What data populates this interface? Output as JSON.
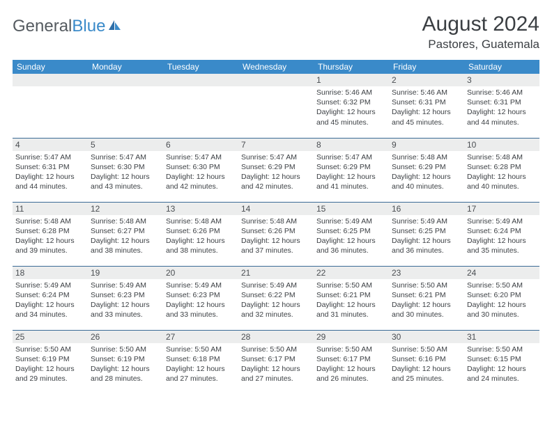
{
  "logo": {
    "text_gray": "General",
    "text_blue": "Blue"
  },
  "title": "August 2024",
  "location": "Pastores, Guatemala",
  "colors": {
    "header_bg": "#3a8ac9",
    "header_fg": "#ffffff",
    "row_border": "#3a6a95",
    "daynum_bg": "#eceded",
    "text": "#3b3f43"
  },
  "day_headers": [
    "Sunday",
    "Monday",
    "Tuesday",
    "Wednesday",
    "Thursday",
    "Friday",
    "Saturday"
  ],
  "weeks": [
    [
      {
        "n": "",
        "lines": []
      },
      {
        "n": "",
        "lines": []
      },
      {
        "n": "",
        "lines": []
      },
      {
        "n": "",
        "lines": []
      },
      {
        "n": "1",
        "lines": [
          "Sunrise: 5:46 AM",
          "Sunset: 6:32 PM",
          "Daylight: 12 hours",
          "and 45 minutes."
        ]
      },
      {
        "n": "2",
        "lines": [
          "Sunrise: 5:46 AM",
          "Sunset: 6:31 PM",
          "Daylight: 12 hours",
          "and 45 minutes."
        ]
      },
      {
        "n": "3",
        "lines": [
          "Sunrise: 5:46 AM",
          "Sunset: 6:31 PM",
          "Daylight: 12 hours",
          "and 44 minutes."
        ]
      }
    ],
    [
      {
        "n": "4",
        "lines": [
          "Sunrise: 5:47 AM",
          "Sunset: 6:31 PM",
          "Daylight: 12 hours",
          "and 44 minutes."
        ]
      },
      {
        "n": "5",
        "lines": [
          "Sunrise: 5:47 AM",
          "Sunset: 6:30 PM",
          "Daylight: 12 hours",
          "and 43 minutes."
        ]
      },
      {
        "n": "6",
        "lines": [
          "Sunrise: 5:47 AM",
          "Sunset: 6:30 PM",
          "Daylight: 12 hours",
          "and 42 minutes."
        ]
      },
      {
        "n": "7",
        "lines": [
          "Sunrise: 5:47 AM",
          "Sunset: 6:29 PM",
          "Daylight: 12 hours",
          "and 42 minutes."
        ]
      },
      {
        "n": "8",
        "lines": [
          "Sunrise: 5:47 AM",
          "Sunset: 6:29 PM",
          "Daylight: 12 hours",
          "and 41 minutes."
        ]
      },
      {
        "n": "9",
        "lines": [
          "Sunrise: 5:48 AM",
          "Sunset: 6:29 PM",
          "Daylight: 12 hours",
          "and 40 minutes."
        ]
      },
      {
        "n": "10",
        "lines": [
          "Sunrise: 5:48 AM",
          "Sunset: 6:28 PM",
          "Daylight: 12 hours",
          "and 40 minutes."
        ]
      }
    ],
    [
      {
        "n": "11",
        "lines": [
          "Sunrise: 5:48 AM",
          "Sunset: 6:28 PM",
          "Daylight: 12 hours",
          "and 39 minutes."
        ]
      },
      {
        "n": "12",
        "lines": [
          "Sunrise: 5:48 AM",
          "Sunset: 6:27 PM",
          "Daylight: 12 hours",
          "and 38 minutes."
        ]
      },
      {
        "n": "13",
        "lines": [
          "Sunrise: 5:48 AM",
          "Sunset: 6:26 PM",
          "Daylight: 12 hours",
          "and 38 minutes."
        ]
      },
      {
        "n": "14",
        "lines": [
          "Sunrise: 5:48 AM",
          "Sunset: 6:26 PM",
          "Daylight: 12 hours",
          "and 37 minutes."
        ]
      },
      {
        "n": "15",
        "lines": [
          "Sunrise: 5:49 AM",
          "Sunset: 6:25 PM",
          "Daylight: 12 hours",
          "and 36 minutes."
        ]
      },
      {
        "n": "16",
        "lines": [
          "Sunrise: 5:49 AM",
          "Sunset: 6:25 PM",
          "Daylight: 12 hours",
          "and 36 minutes."
        ]
      },
      {
        "n": "17",
        "lines": [
          "Sunrise: 5:49 AM",
          "Sunset: 6:24 PM",
          "Daylight: 12 hours",
          "and 35 minutes."
        ]
      }
    ],
    [
      {
        "n": "18",
        "lines": [
          "Sunrise: 5:49 AM",
          "Sunset: 6:24 PM",
          "Daylight: 12 hours",
          "and 34 minutes."
        ]
      },
      {
        "n": "19",
        "lines": [
          "Sunrise: 5:49 AM",
          "Sunset: 6:23 PM",
          "Daylight: 12 hours",
          "and 33 minutes."
        ]
      },
      {
        "n": "20",
        "lines": [
          "Sunrise: 5:49 AM",
          "Sunset: 6:23 PM",
          "Daylight: 12 hours",
          "and 33 minutes."
        ]
      },
      {
        "n": "21",
        "lines": [
          "Sunrise: 5:49 AM",
          "Sunset: 6:22 PM",
          "Daylight: 12 hours",
          "and 32 minutes."
        ]
      },
      {
        "n": "22",
        "lines": [
          "Sunrise: 5:50 AM",
          "Sunset: 6:21 PM",
          "Daylight: 12 hours",
          "and 31 minutes."
        ]
      },
      {
        "n": "23",
        "lines": [
          "Sunrise: 5:50 AM",
          "Sunset: 6:21 PM",
          "Daylight: 12 hours",
          "and 30 minutes."
        ]
      },
      {
        "n": "24",
        "lines": [
          "Sunrise: 5:50 AM",
          "Sunset: 6:20 PM",
          "Daylight: 12 hours",
          "and 30 minutes."
        ]
      }
    ],
    [
      {
        "n": "25",
        "lines": [
          "Sunrise: 5:50 AM",
          "Sunset: 6:19 PM",
          "Daylight: 12 hours",
          "and 29 minutes."
        ]
      },
      {
        "n": "26",
        "lines": [
          "Sunrise: 5:50 AM",
          "Sunset: 6:19 PM",
          "Daylight: 12 hours",
          "and 28 minutes."
        ]
      },
      {
        "n": "27",
        "lines": [
          "Sunrise: 5:50 AM",
          "Sunset: 6:18 PM",
          "Daylight: 12 hours",
          "and 27 minutes."
        ]
      },
      {
        "n": "28",
        "lines": [
          "Sunrise: 5:50 AM",
          "Sunset: 6:17 PM",
          "Daylight: 12 hours",
          "and 27 minutes."
        ]
      },
      {
        "n": "29",
        "lines": [
          "Sunrise: 5:50 AM",
          "Sunset: 6:17 PM",
          "Daylight: 12 hours",
          "and 26 minutes."
        ]
      },
      {
        "n": "30",
        "lines": [
          "Sunrise: 5:50 AM",
          "Sunset: 6:16 PM",
          "Daylight: 12 hours",
          "and 25 minutes."
        ]
      },
      {
        "n": "31",
        "lines": [
          "Sunrise: 5:50 AM",
          "Sunset: 6:15 PM",
          "Daylight: 12 hours",
          "and 24 minutes."
        ]
      }
    ]
  ]
}
